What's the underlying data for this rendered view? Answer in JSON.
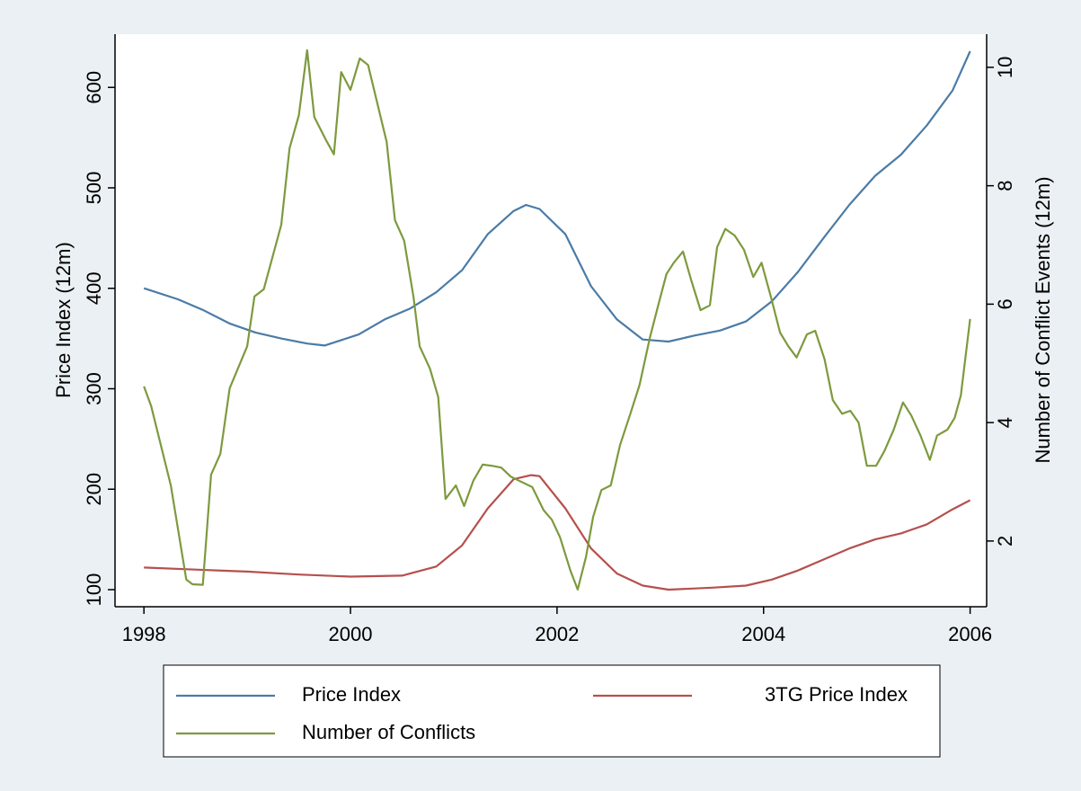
{
  "chart_data": {
    "type": "line",
    "y_label": "Price Index (12m)",
    "y2_label": "Number of Conflict Events (12m)",
    "xlim": [
      1997.72,
      2006.16
    ],
    "xticks": [
      1998,
      2000,
      2002,
      2004,
      2006
    ],
    "ylim": [
      83,
      653
    ],
    "yticks": [
      100,
      200,
      300,
      400,
      500,
      600
    ],
    "y2lim": [
      0.89,
      10.56
    ],
    "y2ticks": [
      2,
      4,
      6,
      8,
      10
    ],
    "legend": "bottom",
    "series": [
      {
        "name": "Price Index",
        "color": "#4b7ba6",
        "x": [
          1998.0,
          1998.33,
          1998.58,
          1998.83,
          1999.08,
          1999.33,
          1999.58,
          1999.75,
          2000.08,
          2000.33,
          2000.58,
          2000.83,
          2001.08,
          2001.33,
          2001.58,
          2001.7,
          2001.83,
          2002.08,
          2002.33,
          2002.58,
          2002.83,
          2003.08,
          2003.33,
          2003.58,
          2003.83,
          2004.08,
          2004.33,
          2004.58,
          2004.83,
          2005.08,
          2005.33,
          2005.58,
          2005.83,
          2006.0
        ],
        "values": [
          400,
          389,
          378,
          365,
          356,
          350,
          345,
          343,
          354,
          369,
          380,
          396,
          418,
          454,
          477,
          483,
          479,
          454,
          402,
          369,
          349,
          347,
          353,
          358,
          367,
          387,
          416,
          450,
          483,
          512,
          533,
          562,
          597,
          636
        ]
      },
      {
        "name": "3TG Price Index",
        "color": "#b5504e",
        "x": [
          1998.0,
          1998.5,
          1999.0,
          1999.5,
          2000.0,
          2000.5,
          2000.83,
          2001.08,
          2001.33,
          2001.58,
          2001.75,
          2001.83,
          2002.08,
          2002.33,
          2002.58,
          2002.83,
          2003.08,
          2003.5,
          2003.83,
          2004.08,
          2004.33,
          2004.58,
          2004.83,
          2005.08,
          2005.33,
          2005.58,
          2005.83,
          2006.0
        ],
        "values": [
          122,
          120,
          118,
          115,
          113,
          114,
          123,
          144,
          181,
          210,
          214,
          213,
          181,
          141,
          116,
          104,
          100,
          102,
          104,
          110,
          119,
          130,
          141,
          150,
          156,
          165,
          180,
          189
        ]
      },
      {
        "name": "Number of Conflicts",
        "color": "#7d9a3e",
        "axis": "y2",
        "x": [
          1998.0,
          1998.07,
          1998.26,
          1998.41,
          1998.47,
          1998.57,
          1998.65,
          1998.74,
          1998.83,
          1999.0,
          1999.07,
          1999.16,
          1999.33,
          1999.41,
          1999.5,
          1999.58,
          1999.65,
          1999.76,
          1999.84,
          1999.91,
          2000.0,
          2000.09,
          2000.17,
          2000.35,
          2000.43,
          2000.52,
          2000.61,
          2000.67,
          2000.77,
          2000.85,
          2000.92,
          2001.02,
          2001.1,
          2001.19,
          2001.28,
          2001.37,
          2001.46,
          2001.55,
          2001.63,
          2001.76,
          2001.87,
          2001.95,
          2002.03,
          2002.13,
          2002.2,
          2002.28,
          2002.35,
          2002.43,
          2002.52,
          2002.61,
          2002.71,
          2002.8,
          2002.9,
          2002.98,
          2003.06,
          2003.13,
          2003.22,
          2003.3,
          2003.39,
          2003.48,
          2003.55,
          2003.63,
          2003.72,
          2003.81,
          2003.9,
          2003.98,
          2004.07,
          2004.16,
          2004.24,
          2004.32,
          2004.42,
          2004.5,
          2004.59,
          2004.67,
          2004.76,
          2004.84,
          2004.92,
          2005.0,
          2005.09,
          2005.17,
          2005.26,
          2005.35,
          2005.43,
          2005.52,
          2005.61,
          2005.68,
          2005.78,
          2005.85,
          2005.91,
          2006.0
        ],
        "values": [
          4.61,
          4.28,
          2.94,
          1.35,
          1.27,
          1.26,
          3.12,
          3.47,
          4.58,
          5.29,
          6.13,
          6.25,
          7.34,
          8.63,
          9.19,
          10.29,
          9.16,
          8.78,
          8.53,
          9.92,
          9.62,
          10.15,
          10.04,
          8.74,
          7.42,
          7.07,
          6.13,
          5.29,
          4.91,
          4.43,
          2.71,
          2.94,
          2.59,
          3.02,
          3.29,
          3.27,
          3.24,
          3.09,
          3.02,
          2.91,
          2.52,
          2.36,
          2.06,
          1.5,
          1.18,
          1.73,
          2.41,
          2.86,
          2.94,
          3.62,
          4.15,
          4.64,
          5.44,
          5.98,
          6.51,
          6.7,
          6.89,
          6.4,
          5.9,
          5.98,
          6.96,
          7.27,
          7.16,
          6.92,
          6.46,
          6.7,
          6.13,
          5.52,
          5.29,
          5.1,
          5.49,
          5.55,
          5.07,
          4.38,
          4.15,
          4.2,
          4,
          3.27,
          3.27,
          3.52,
          3.88,
          4.34,
          4.12,
          3.78,
          3.37,
          3.78,
          3.88,
          4.08,
          4.46,
          5.75
        ]
      }
    ]
  }
}
